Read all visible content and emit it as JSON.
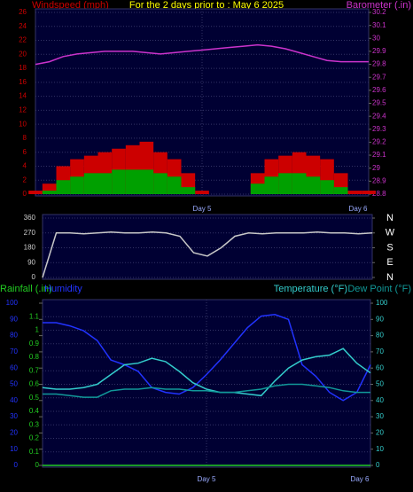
{
  "header": {
    "title": "For the 2 days prior to : May 6 2025"
  },
  "chart_data": [
    {
      "type": "combo",
      "y_label": "Windspeed (mph)",
      "y2_label": "Barometer (.in)",
      "x": [
        0,
        2,
        4,
        6,
        8,
        10,
        12,
        14,
        16,
        18,
        20,
        22,
        24,
        26,
        28,
        30,
        32,
        34,
        36,
        38,
        40,
        42,
        44,
        46,
        48
      ],
      "xlim": [
        0,
        48
      ],
      "xticks": [
        {
          "value": 24,
          "label": "Day 5"
        },
        {
          "value": 48,
          "label": "Day 6"
        }
      ],
      "ylim": [
        0,
        26
      ],
      "yticks": [
        0,
        2,
        4,
        6,
        8,
        10,
        12,
        14,
        16,
        18,
        20,
        22,
        24,
        26
      ],
      "y2lim": [
        28.8,
        30.2
      ],
      "y2ticks": [
        28.8,
        28.9,
        29,
        29.1,
        29.2,
        29.3,
        29.4,
        29.5,
        29.6,
        29.7,
        29.8,
        29.9,
        30,
        30.1,
        30.2
      ],
      "grid": true,
      "series": [
        {
          "type": "bar",
          "color": "#cc0000",
          "values": [
            0.5,
            1.5,
            4,
            5,
            5.5,
            6,
            6.5,
            7,
            7.5,
            6,
            5,
            3,
            0.5,
            0,
            0,
            0,
            3,
            5,
            5.5,
            6,
            5.5,
            5,
            3,
            0.5,
            0.5
          ]
        },
        {
          "type": "bar",
          "color": "#00a000",
          "values": [
            0,
            0.5,
            2,
            2.5,
            3,
            3,
            3.5,
            3.5,
            3.5,
            3,
            2.5,
            1,
            0,
            0,
            0,
            0,
            1.5,
            2.5,
            3,
            3,
            2.5,
            2,
            1,
            0,
            0
          ]
        },
        {
          "type": "line",
          "axis": "y2",
          "color": "#cc33cc",
          "values": [
            29.8,
            29.82,
            29.86,
            29.88,
            29.89,
            29.9,
            29.9,
            29.9,
            29.89,
            29.88,
            29.89,
            29.9,
            29.91,
            29.92,
            29.93,
            29.94,
            29.95,
            29.94,
            29.92,
            29.89,
            29.86,
            29.83,
            29.82,
            29.82,
            29.82
          ]
        }
      ]
    },
    {
      "type": "combo",
      "x": [
        0,
        2,
        4,
        6,
        8,
        10,
        12,
        14,
        16,
        18,
        20,
        22,
        24,
        26,
        28,
        30,
        32,
        34,
        36,
        38,
        40,
        42,
        44,
        46,
        48
      ],
      "xlim": [
        0,
        48
      ],
      "ylim": [
        0,
        360
      ],
      "yticks": [
        0,
        90,
        180,
        270,
        360
      ],
      "y2lim": [
        0,
        360
      ],
      "y2ticks": [
        {
          "value": 0,
          "label": "N"
        },
        {
          "value": 90,
          "label": "E"
        },
        {
          "value": 180,
          "label": "S"
        },
        {
          "value": 270,
          "label": "W"
        },
        {
          "value": 360,
          "label": "N"
        }
      ],
      "grid": true,
      "series": [
        {
          "type": "line",
          "color": "#c8c8c8",
          "values": [
            0,
            270,
            270,
            265,
            270,
            275,
            270,
            270,
            275,
            270,
            250,
            150,
            130,
            180,
            250,
            270,
            265,
            270,
            270,
            270,
            275,
            270,
            270,
            265,
            270
          ]
        }
      ]
    },
    {
      "type": "combo",
      "x": [
        0,
        2,
        4,
        6,
        8,
        10,
        12,
        14,
        16,
        18,
        20,
        22,
        24,
        26,
        28,
        30,
        32,
        34,
        36,
        38,
        40,
        42,
        44,
        46,
        48
      ],
      "xlim": [
        0,
        48
      ],
      "xticks": [
        {
          "value": 24,
          "label": "Day 5"
        },
        {
          "value": 48,
          "label": "Day 6"
        }
      ],
      "ylim": [
        0,
        1.2
      ],
      "yticks": [
        0,
        0.1,
        0.2,
        0.3,
        0.4,
        0.5,
        0.6,
        0.7,
        0.8,
        0.9,
        1,
        1.1
      ],
      "hlim": [
        0,
        100
      ],
      "hticks": [
        0,
        10,
        20,
        30,
        40,
        50,
        60,
        70,
        80,
        90,
        100
      ],
      "y2lim": [
        0,
        100
      ],
      "y2ticks": [
        0,
        10,
        20,
        30,
        40,
        50,
        60,
        70,
        80,
        90,
        100
      ],
      "grid": true,
      "series": [
        {
          "name": "Rainfall (.in)",
          "type": "line",
          "color": "#22cc22",
          "values": [
            0,
            0,
            0,
            0,
            0,
            0,
            0,
            0,
            0,
            0,
            0,
            0,
            0,
            0,
            0,
            0,
            0,
            0,
            0,
            0,
            0,
            0,
            0,
            0,
            0
          ]
        },
        {
          "name": "Humidity",
          "type": "line",
          "axis": "h",
          "color": "#2233ff",
          "values": [
            88,
            88,
            86,
            83,
            77,
            65,
            62,
            58,
            48,
            45,
            44,
            48,
            56,
            65,
            75,
            85,
            92,
            93,
            90,
            62,
            55,
            45,
            40,
            45,
            62
          ]
        },
        {
          "name": "Temperature (°F)",
          "type": "line",
          "axis": "y2",
          "color": "#33cccc",
          "values": [
            48,
            47,
            47,
            48,
            50,
            56,
            62,
            63,
            66,
            64,
            58,
            51,
            47,
            45,
            45,
            44,
            43,
            52,
            60,
            65,
            67,
            68,
            72,
            63,
            57
          ]
        },
        {
          "name": "Dew Point (°F)",
          "type": "line",
          "axis": "y2",
          "color": "#119999",
          "values": [
            44,
            44,
            43,
            42,
            42,
            46,
            47,
            47,
            48,
            47,
            47,
            46,
            46,
            45,
            45,
            46,
            47,
            49,
            50,
            50,
            49,
            48,
            46,
            45,
            45
          ]
        }
      ]
    }
  ]
}
